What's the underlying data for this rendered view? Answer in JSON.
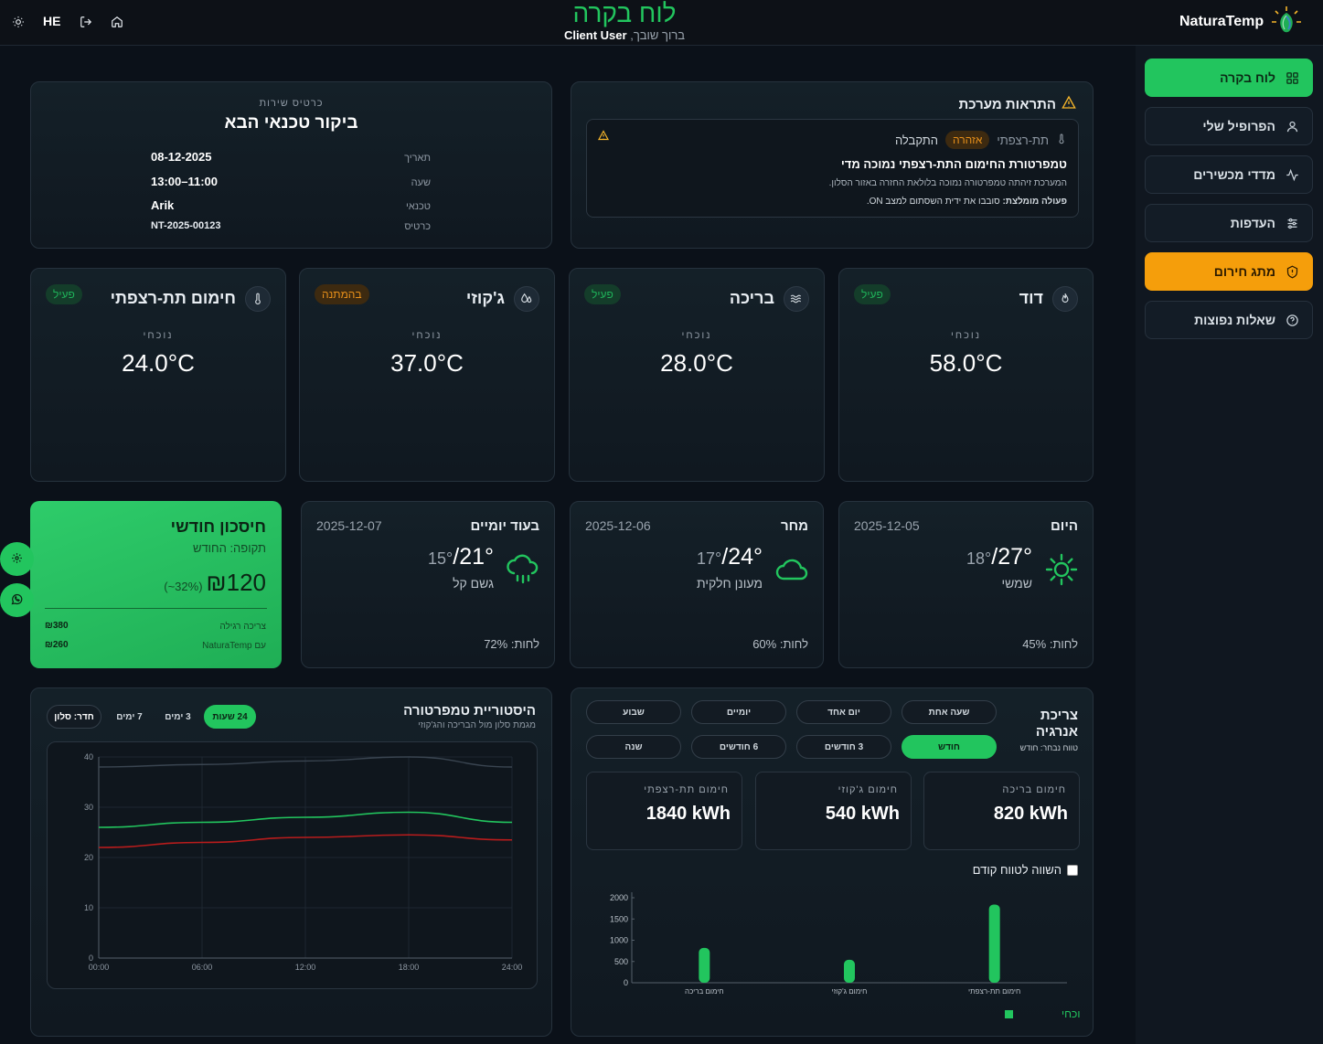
{
  "header": {
    "title": "לוח בקרה",
    "greeting": "ברוך שובך,",
    "user": "Client User",
    "lang": "HE",
    "brand": "NaturaTemp",
    "icons": [
      "sun-icon",
      "logout-icon",
      "home-icon"
    ]
  },
  "sidebar": {
    "items": [
      {
        "label": "לוח בקרה",
        "icon": "grid-icon",
        "state": "active"
      },
      {
        "label": "הפרופיל שלי",
        "icon": "user-icon",
        "state": "normal"
      },
      {
        "label": "מדדי מכשירים",
        "icon": "activity-icon",
        "state": "normal"
      },
      {
        "label": "העדפות",
        "icon": "sliders-icon",
        "state": "normal"
      },
      {
        "label": "מתג חירום",
        "icon": "shield-icon",
        "state": "warning"
      },
      {
        "label": "שאלות נפוצות",
        "icon": "help-icon",
        "state": "normal"
      }
    ]
  },
  "alerts": {
    "title": "התראות מערכת",
    "item": {
      "source": "תת-רצפתי",
      "level": "אזהרה",
      "status": "התקבלה",
      "headline": "טמפרטורת החימום התת-רצפתי נמוכה מדי",
      "description": "המערכת זיהתה טמפרטורה נמוכה בלולאת החזרה באזור הסלון.",
      "action_label": "פעולה מומלצת:",
      "action_text": "סובבו את ידית השסתום למצב ON."
    }
  },
  "service": {
    "kicker": "כרטיס שירות",
    "title": "ביקור טכנאי הבא",
    "rows": [
      {
        "label": "תאריך",
        "value": "08-12-2025"
      },
      {
        "label": "שעה",
        "value": "11:00–13:00"
      },
      {
        "label": "טכנאי",
        "value": "Arik"
      },
      {
        "label": "כרטיס",
        "value": "NT-2025-00123"
      }
    ]
  },
  "devices": [
    {
      "name": "חימום תת-רצפתי",
      "icon": "thermometer-icon",
      "status": "פעיל",
      "state": "on",
      "current_label": "נוכחי",
      "value": "24.0°C"
    },
    {
      "name": "ג'קוזי",
      "icon": "droplets-icon",
      "status": "בהמתנה",
      "state": "wait",
      "current_label": "נוכחי",
      "value": "37.0°C"
    },
    {
      "name": "בריכה",
      "icon": "waves-icon",
      "status": "פעיל",
      "state": "on",
      "current_label": "נוכחי",
      "value": "28.0°C"
    },
    {
      "name": "דוד",
      "icon": "flame-icon",
      "status": "פעיל",
      "state": "on",
      "current_label": "נוכחי",
      "value": "58.0°C"
    }
  ],
  "savings": {
    "title": "חיסכון חודשי",
    "period": "תקופה: החודש",
    "amount": "₪120",
    "percent": "(~32%)",
    "rows": [
      {
        "label": "צריכה רגילה",
        "value": "₪380"
      },
      {
        "label": "עם NaturaTemp",
        "value": "₪260"
      }
    ]
  },
  "weather": [
    {
      "day": "בעוד יומיים",
      "date": "2025-12-07",
      "high": "21°",
      "low": "15°",
      "condition": "גשם קל",
      "humidity": "לחות: 72%",
      "icon": "rain-icon"
    },
    {
      "day": "מחר",
      "date": "2025-12-06",
      "high": "24°",
      "low": "17°",
      "condition": "מעונן חלקית",
      "humidity": "לחות: 60%",
      "icon": "cloud-icon"
    },
    {
      "day": "היום",
      "date": "2025-12-05",
      "high": "27°",
      "low": "18°",
      "condition": "שמשי",
      "humidity": "לחות: 45%",
      "icon": "sun-icon"
    }
  ],
  "history": {
    "title": "היסטוריית טמפרטורה",
    "subtitle": "מגמת סלון מול הבריכה והג'קוזי",
    "ranges": [
      {
        "label": "24 שעות",
        "selected": true
      },
      {
        "label": "3 ימים",
        "selected": false
      },
      {
        "label": "7 ימים",
        "selected": false
      }
    ],
    "room_select": "חדר: סלון"
  },
  "energy": {
    "title": "צריכת אנרגיה",
    "range_text": "טווח נבחר: חודש",
    "ranges": [
      {
        "label": "שעה אחת",
        "selected": false
      },
      {
        "label": "יום אחד",
        "selected": false
      },
      {
        "label": "יומיים",
        "selected": false
      },
      {
        "label": "שבוע",
        "selected": false
      },
      {
        "label": "חודש",
        "selected": true
      },
      {
        "label": "3 חודשים",
        "selected": false
      },
      {
        "label": "6 חודשים",
        "selected": false
      },
      {
        "label": "שנה",
        "selected": false
      }
    ],
    "cards": [
      {
        "label": "חימום בריכה",
        "value": "820 kWh"
      },
      {
        "label": "חימום ג'קוזי",
        "value": "540 kWh"
      },
      {
        "label": "חימום תת-רצפתי",
        "value": "1840 kWh"
      }
    ],
    "compare_label": "השווה לטווח קודם",
    "legend": "טווח נוכחי"
  },
  "colors": {
    "accent": "#22c55e",
    "warning": "#f59e0b",
    "line_a": "#22c55e",
    "line_b": "#b91c1c",
    "line_c": "#3a4551"
  },
  "chart_data": [
    {
      "type": "line",
      "x": [
        "00:00",
        "06:00",
        "12:00",
        "18:00",
        "24:00"
      ],
      "ylim": [
        0,
        40
      ],
      "yticks": [
        0,
        10,
        20,
        30,
        40
      ],
      "grid": true,
      "series": [
        {
          "values": [
            38,
            38.5,
            39.2,
            40,
            38
          ]
        },
        {
          "values": [
            26,
            27,
            28,
            29,
            27
          ]
        },
        {
          "values": [
            22,
            23,
            24,
            24.5,
            23.5
          ]
        }
      ]
    },
    {
      "type": "bar",
      "categories": [
        "חימום בריכה",
        "חימום ג'קוזי",
        "חימום תת-רצפתי"
      ],
      "series": [
        {
          "name": "טווח נוכחי",
          "values": [
            820,
            540,
            1840
          ]
        }
      ],
      "ylim": [
        0,
        2000
      ],
      "yticks": [
        0,
        500,
        1000,
        1500,
        2000
      ],
      "legend": "bottom"
    }
  ]
}
